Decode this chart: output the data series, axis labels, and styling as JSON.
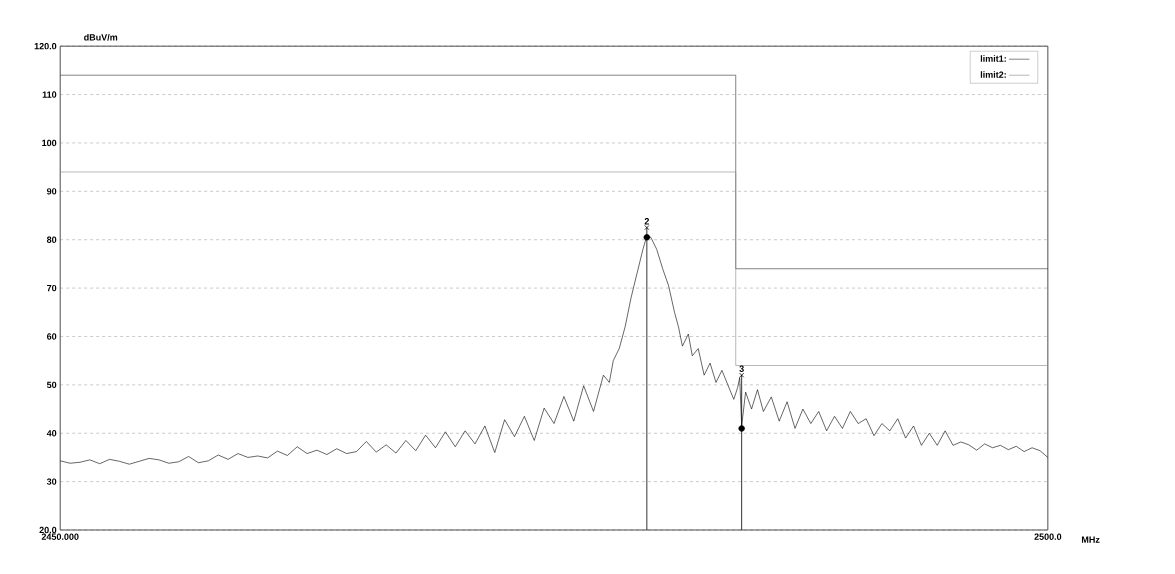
{
  "chart_data": {
    "type": "line",
    "ylabel": "dBuV/m",
    "xlabel": "MHz",
    "xlim": [
      2450,
      2500
    ],
    "xticks": [
      {
        "value": 2450,
        "label": "2450.000"
      },
      {
        "value": 2500,
        "label": "2500.0"
      }
    ],
    "ylim": [
      20,
      120
    ],
    "yticks": [
      {
        "value": 20,
        "label": "20.0"
      },
      30,
      40,
      50,
      60,
      70,
      80,
      90,
      100,
      110,
      {
        "value": 120,
        "label": "120.0"
      }
    ],
    "grid": "y",
    "legend": "top right",
    "series": [
      {
        "color": "#000000",
        "x": [
          2450,
          2450.5,
          2451,
          2451.5,
          2452,
          2452.5,
          2453,
          2453.5,
          2454,
          2454.5,
          2455,
          2455.5,
          2456,
          2456.5,
          2457,
          2457.5,
          2458,
          2458.5,
          2459,
          2459.5,
          2460,
          2460.5,
          2461,
          2461.5,
          2462,
          2462.5,
          2463,
          2463.5,
          2464,
          2464.5,
          2465,
          2465.5,
          2466,
          2466.5,
          2467,
          2467.5,
          2468,
          2468.5,
          2469,
          2469.5,
          2470,
          2470.5,
          2471,
          2471.5,
          2472,
          2472.5,
          2473,
          2473.5,
          2474,
          2474.5,
          2475,
          2475.5,
          2476,
          2476.5,
          2477,
          2477.5,
          2477.8,
          2478,
          2478.3,
          2478.6,
          2478.9,
          2479.2,
          2479.5,
          2479.7,
          2479.9,
          2480.2,
          2480.5,
          2480.8,
          2481.1,
          2481.3,
          2481.5,
          2481.8,
          2482,
          2482.3,
          2482.6,
          2482.9,
          2483.2,
          2483.5,
          2483.8,
          2484.1,
          2484.3,
          2484.4,
          2484.5,
          2484.7,
          2485,
          2485.3,
          2485.6,
          2486,
          2486.4,
          2486.8,
          2487.2,
          2487.6,
          2488,
          2488.4,
          2488.8,
          2489.2,
          2489.6,
          2490,
          2490.4,
          2490.8,
          2491.2,
          2491.6,
          2492,
          2492.4,
          2492.8,
          2493.2,
          2493.6,
          2494,
          2494.4,
          2494.8,
          2495.2,
          2495.6,
          2496,
          2496.4,
          2496.8,
          2497.2,
          2497.6,
          2498,
          2498.4,
          2498.8,
          2499.2,
          2499.6,
          2500
        ],
        "values": [
          34.3,
          33.8,
          34,
          34.5,
          33.7,
          34.6,
          34.2,
          33.6,
          34.2,
          34.8,
          34.5,
          33.8,
          34.1,
          35.2,
          33.9,
          34.3,
          35.5,
          34.6,
          35.8,
          35,
          35.3,
          34.9,
          36.3,
          35.4,
          37.2,
          35.8,
          36.5,
          35.6,
          36.8,
          35.8,
          36.2,
          38.3,
          36.1,
          37.6,
          35.9,
          38.5,
          36.4,
          39.6,
          37,
          40.3,
          37.2,
          40.5,
          37.8,
          41.5,
          36,
          42.8,
          39.3,
          43.5,
          38.5,
          45.2,
          42,
          47.6,
          42.5,
          49.8,
          44.5,
          52,
          50.5,
          55,
          57.5,
          62,
          68,
          73,
          78,
          80.8,
          80.5,
          78,
          74,
          70.5,
          65,
          62,
          58,
          60.5,
          56,
          57.5,
          52,
          54.5,
          50.5,
          53,
          50,
          47,
          49.5,
          51.5,
          41.5,
          48.5,
          45,
          49,
          44.5,
          47.5,
          42.5,
          46.5,
          41,
          45,
          42,
          44.5,
          40.5,
          43.5,
          41,
          44.5,
          42,
          43,
          39.5,
          42,
          40.5,
          43,
          39,
          41.5,
          37.5,
          40,
          37.5,
          40.5,
          37.5,
          38.2,
          37.6,
          36.5,
          37.8,
          37,
          37.5,
          36.6,
          37.3,
          36.2,
          37,
          36.4,
          35
        ]
      },
      {
        "name": "limit1:",
        "color": "#333333",
        "x": [
          2450,
          2484.2,
          2484.2,
          2500
        ],
        "values": [
          114,
          114,
          74,
          74
        ]
      },
      {
        "name": "limit2:",
        "color": "#888888",
        "x": [
          2450,
          2484.2,
          2484.2,
          2500
        ],
        "values": [
          94,
          94,
          54,
          54
        ]
      },
      {
        "type": "lollipop",
        "color": "#000000",
        "marker": "cross",
        "x": [
          2479.7,
          2484.5
        ],
        "values": [
          82.5,
          52
        ]
      },
      {
        "type": "scatter",
        "color": "#000000",
        "marker": "circle",
        "x": [
          2479.7,
          2484.5
        ],
        "values": [
          80.5,
          41
        ]
      }
    ],
    "annotations": [
      {
        "text": "2",
        "x": 2479.7,
        "y": 82.5
      },
      {
        "text": "3",
        "x": 2484.5,
        "y": 52
      }
    ]
  }
}
